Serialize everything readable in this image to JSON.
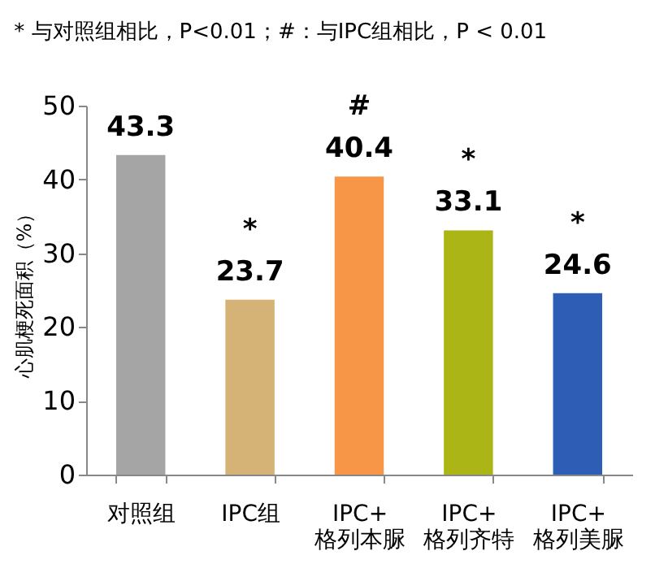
{
  "chart_data": {
    "type": "bar",
    "ylabel": "心肌梗死面积（%）",
    "categories": [
      "对照组",
      "IPC组",
      "IPC+\n格列本脲",
      "IPC+\n格列齐特",
      "IPC+\n格列美脲"
    ],
    "values": [
      43.3,
      23.7,
      40.4,
      33.1,
      24.6
    ],
    "value_labels": [
      "43.3",
      "*\n23.7",
      "#\n40.4",
      "*\n33.1",
      "*\n24.6"
    ],
    "colors": [
      "#a5a5a5",
      "#d5b377",
      "#f79646",
      "#acb516",
      "#2e5db6"
    ],
    "ylim": [
      0,
      50
    ],
    "yticks": [
      0,
      10,
      20,
      30,
      40,
      50
    ],
    "grid": false,
    "annotations": [
      "* 与对照组相比，P<0.01；#：与IPC组相比，P < 0.01"
    ]
  }
}
